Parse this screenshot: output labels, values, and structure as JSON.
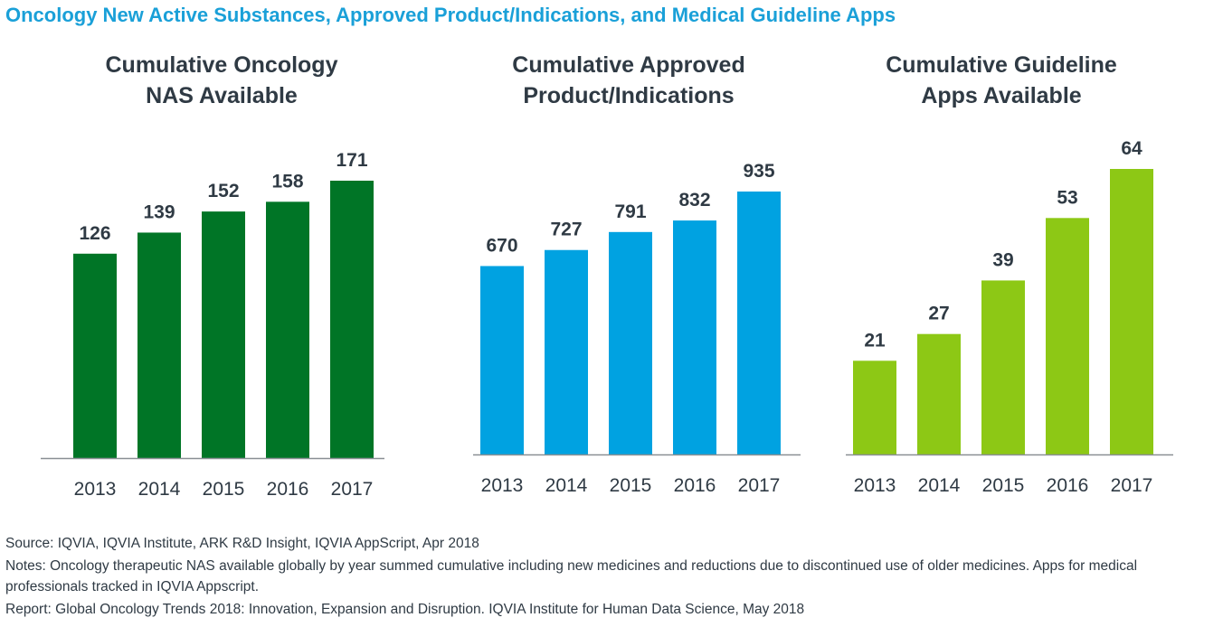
{
  "header": {
    "title": "Oncology New Active Substances, Approved Product/Indications, and Medical Guideline Apps"
  },
  "colors": {
    "title": "#1aa0d8",
    "text": "#2f3a44",
    "axis": "#8a8f94"
  },
  "chart_data": [
    {
      "type": "bar",
      "title_lines": [
        "Cumulative Oncology",
        "NAS Available"
      ],
      "categories": [
        "2013",
        "2014",
        "2015",
        "2016",
        "2017"
      ],
      "values": [
        126,
        139,
        152,
        158,
        171
      ],
      "value_labels": [
        "126",
        "139",
        "152",
        "158",
        "171"
      ],
      "ylim": [
        0,
        185
      ],
      "color": "#007526",
      "grid": false,
      "legend": "none"
    },
    {
      "type": "bar",
      "title_lines": [
        "Cumulative Approved",
        "Product/Indications"
      ],
      "categories": [
        "2013",
        "2014",
        "2015",
        "2016",
        "2017"
      ],
      "values": [
        670,
        727,
        791,
        832,
        935
      ],
      "value_labels": [
        "670",
        "727",
        "791",
        "832",
        "935"
      ],
      "ylim": [
        0,
        1010
      ],
      "color": "#00a2e1",
      "grid": false,
      "legend": "none"
    },
    {
      "type": "bar",
      "title_lines": [
        "Cumulative Guideline",
        "Apps Available"
      ],
      "categories": [
        "2013",
        "2014",
        "2015",
        "2016",
        "2017"
      ],
      "values": [
        21,
        27,
        39,
        53,
        64
      ],
      "value_labels": [
        "21",
        "27",
        "39",
        "53",
        "64"
      ],
      "ylim": [
        0,
        78
      ],
      "color": "#8dc815",
      "grid": false,
      "legend": "none"
    }
  ],
  "footnotes": {
    "source": "Source: IQVIA, IQVIA Institute, ARK R&D Insight, IQVIA AppScript, Apr 2018",
    "notes": "Notes: Oncology therapeutic NAS available globally by year summed cumulative including new medicines and reductions due to discontinued use of older medicines. Apps for medical professionals tracked in IQVIA Appscript.",
    "report": "Report: Global Oncology Trends 2018: Innovation, Expansion and Disruption. IQVIA Institute for Human Data Science, May 2018"
  }
}
